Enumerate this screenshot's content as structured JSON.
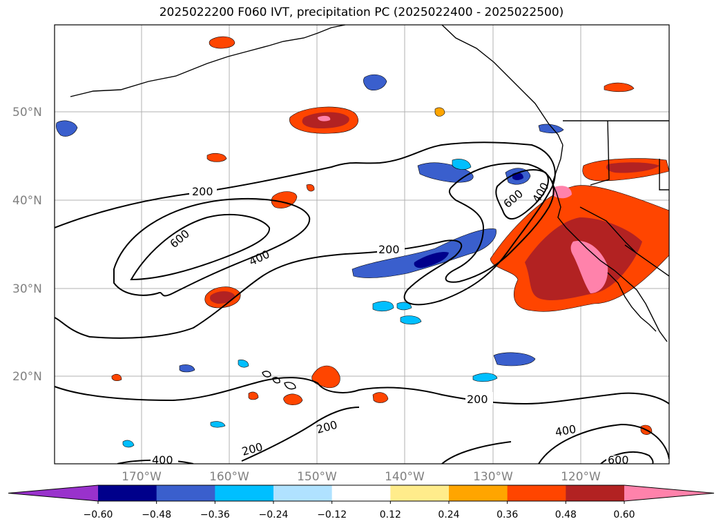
{
  "title": "2025022200 F060 IVT, precipitation PC (2025022400 - 2025022500)",
  "map": {
    "lat_labels": [
      "50°N",
      "40°N",
      "30°N",
      "20°N"
    ],
    "lon_labels": [
      "170°W",
      "160°W",
      "150°W",
      "140°W",
      "130°W",
      "120°W"
    ],
    "contour_labels": [
      "200",
      "200",
      "200",
      "200",
      "200",
      "600",
      "600",
      "400",
      "400",
      "400",
      "400",
      "600"
    ],
    "gridline_color": "#b0b0b0",
    "coastline_color": "#000000"
  },
  "colorbar": {
    "colors": [
      "#9932cc",
      "#00008b",
      "#3a5fcd",
      "#00bfff",
      "#b0e2ff",
      "#ffffff",
      "#ffec8b",
      "#ffa500",
      "#ff4500",
      "#b22222",
      "#ff82ab"
    ],
    "ticks": [
      "−0.60",
      "−0.48",
      "−0.36",
      "−0.24",
      "−0.12",
      "0.12",
      "0.24",
      "0.36",
      "0.48",
      "0.60"
    ]
  }
}
